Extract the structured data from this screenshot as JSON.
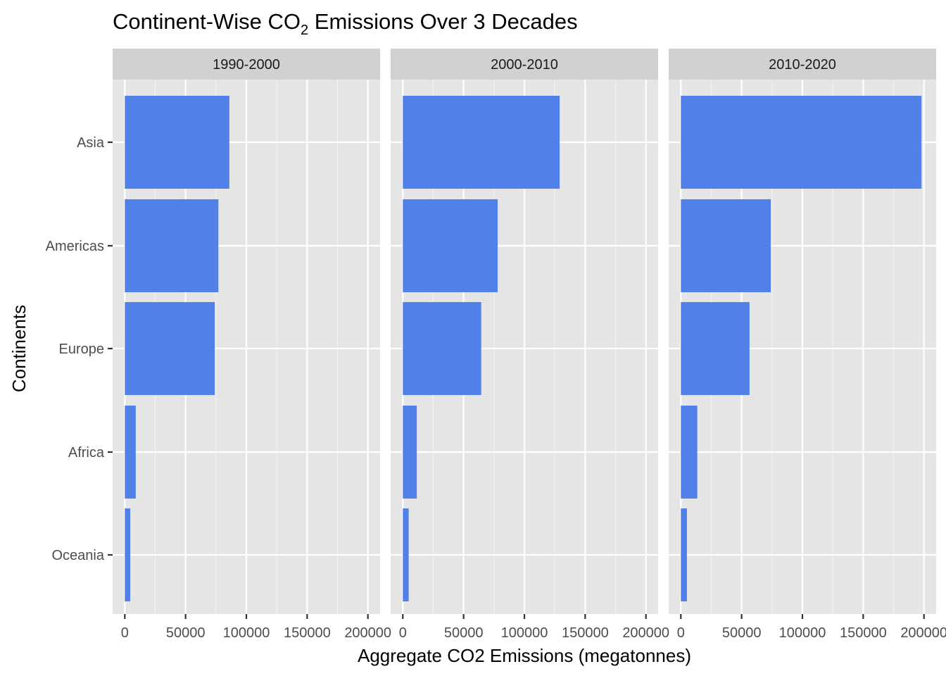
{
  "chart_data": {
    "type": "bar",
    "orientation": "horizontal",
    "title_main": "Continent-Wise CO",
    "title_sub": "2",
    "title_rest": " Emissions Over 3 Decades",
    "xlabel": "Aggregate CO2 Emissions (megatonnes)",
    "ylabel": "Continents",
    "categories": [
      "Asia",
      "Americas",
      "Europe",
      "Africa",
      "Oceania"
    ],
    "xlim": [
      0,
      200000
    ],
    "x_ticks": [
      "0",
      "50000",
      "100000",
      "150000",
      "200000"
    ],
    "x_tick_values": [
      0,
      50000,
      100000,
      150000,
      200000
    ],
    "bar_color": "#5181E8",
    "panel_background": "#E5E5E5",
    "strip_background": "#D1D1D1",
    "grid": true,
    "panels": [
      {
        "label": "1990-2000",
        "values": [
          86000,
          77000,
          74000,
          9000,
          4500
        ]
      },
      {
        "label": "2000-2010",
        "values": [
          129000,
          78000,
          64500,
          11500,
          4800
        ]
      },
      {
        "label": "2010-2020",
        "values": [
          198000,
          74000,
          56500,
          13500,
          5000
        ]
      }
    ]
  }
}
